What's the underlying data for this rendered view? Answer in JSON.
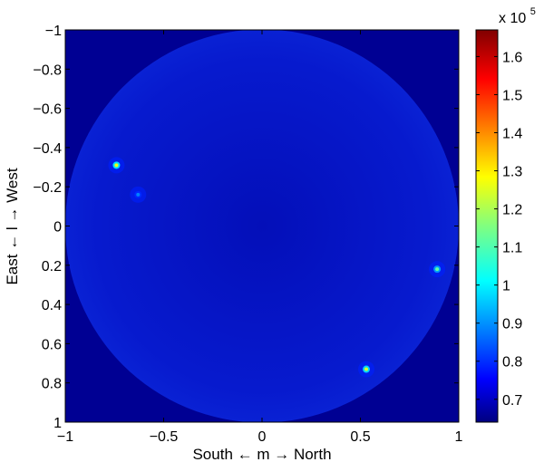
{
  "chart_data": {
    "type": "heatmap",
    "xlabel": "South ← m → North",
    "ylabel": "East ← l → West",
    "xlim": [
      -1,
      1
    ],
    "ylim": [
      -1,
      1
    ],
    "y_reversed": true,
    "x_ticks": [
      -1,
      -0.5,
      0,
      0.5,
      1
    ],
    "x_tick_labels": [
      "−1",
      "−0.5",
      "0",
      "0.5",
      "1"
    ],
    "y_ticks": [
      -1,
      -0.8,
      -0.6,
      -0.4,
      -0.2,
      0,
      0.2,
      0.4,
      0.6,
      0.8,
      1
    ],
    "y_tick_labels": [
      "−1",
      "−0.8",
      "−0.6",
      "−0.4",
      "−0.2",
      "0",
      "0.2",
      "0.4",
      "0.6",
      "0.8",
      "1"
    ],
    "colorbar": {
      "range": [
        0.64,
        1.67
      ],
      "ticks": [
        0.7,
        0.8,
        0.9,
        1,
        1.1,
        1.2,
        1.3,
        1.4,
        1.5,
        1.6
      ],
      "tick_labels": [
        "0.7",
        "0.8",
        "0.9",
        "1",
        "1.1",
        "1.2",
        "1.3",
        "1.4",
        "1.5",
        "1.6"
      ],
      "multiplier_base": "x 10",
      "multiplier_exponent": "5",
      "colormap": "jet"
    },
    "background_value": 0.66,
    "disk": {
      "center": [
        0,
        0
      ],
      "radius": 1.0,
      "value": 0.72
    },
    "sources": [
      {
        "m": -0.74,
        "l": -0.31,
        "peak": 1.27
      },
      {
        "m": -0.63,
        "l": -0.16,
        "peak": 0.9
      },
      {
        "m": 0.89,
        "l": 0.22,
        "peak": 1.12
      },
      {
        "m": 0.53,
        "l": 0.73,
        "peak": 1.24
      }
    ]
  }
}
